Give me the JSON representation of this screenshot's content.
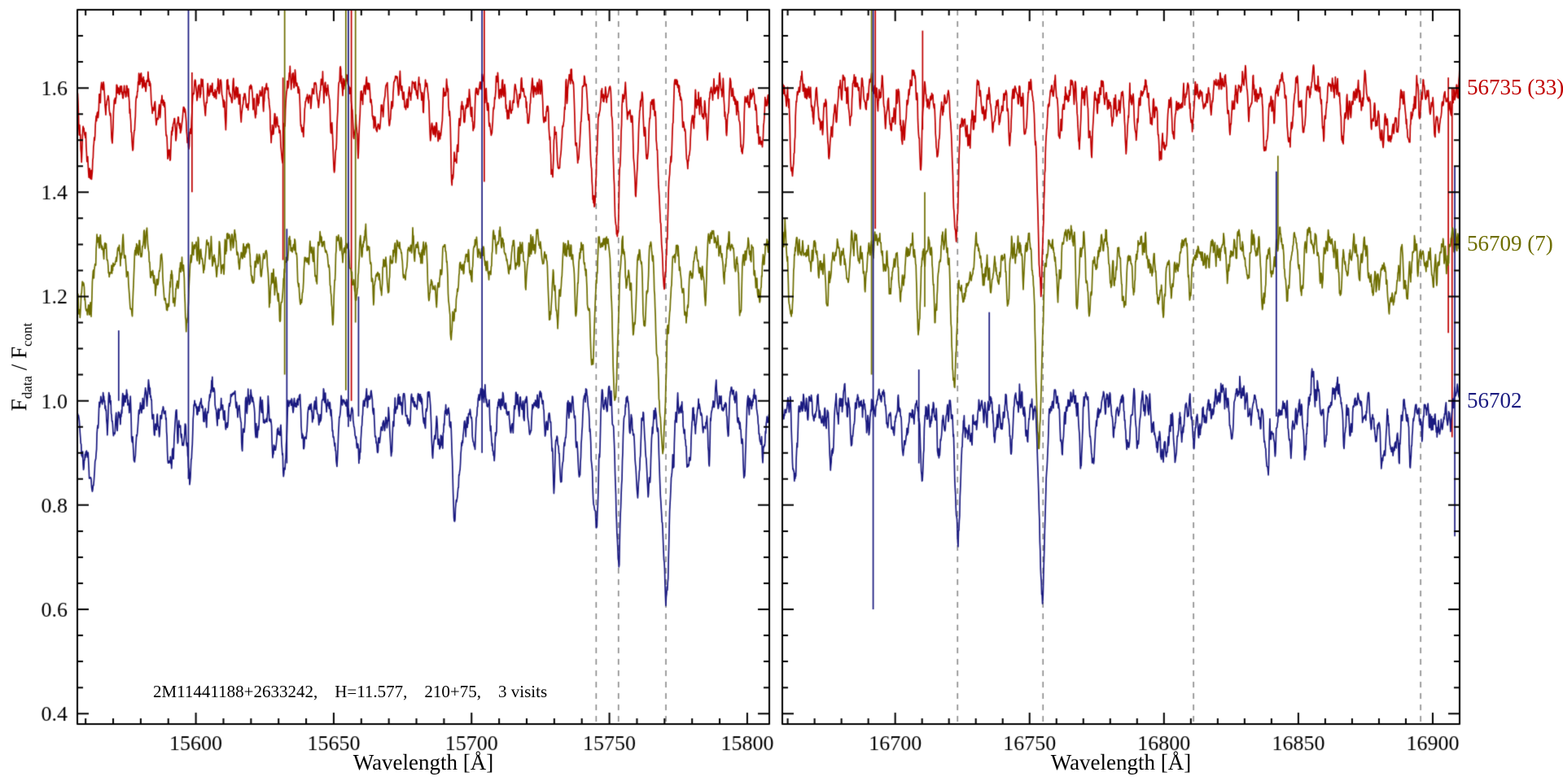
{
  "figure": {
    "background": "#ffffff",
    "annotation": "2M11441188+2633242,    H=11.577,    210+75,    3 visits",
    "ylabel": {
      "f1": "F",
      "sub1": "data",
      "mid": " / F",
      "sub2": "cont"
    }
  },
  "chart_data": {
    "type": "line",
    "title": "",
    "description": "Continuum-normalized near-infrared spectra of 2M11441188+2633242 at three epochs (MJD 56702, 56709, 56735), vertically offset; dashed vertical lines mark strong absorption features",
    "ylabel": "F_data / F_cont",
    "ylim": [
      0.38,
      1.75
    ],
    "yticks": [
      0.4,
      0.6,
      0.8,
      1.0,
      1.2,
      1.4,
      1.6
    ],
    "ytick_labels": [
      "0.4",
      "0.6",
      "0.8",
      "1.0",
      "1.2",
      "1.4",
      "1.6"
    ],
    "yminor": 0.05,
    "grid": false,
    "legend_position": "right-outside",
    "axis_color": "#000000",
    "dash_color": "#8a8a8a",
    "noise_fine": 0.02,
    "noise_broad": 0.05,
    "weak_line_count": 90,
    "series": [
      {
        "name": "56702",
        "label": "56702",
        "color": "#1a1a80",
        "offset": 1.0,
        "rv_shift": 0.0
      },
      {
        "name": "56709",
        "label": "56709 (7)",
        "color": "#6e6e00",
        "offset": 1.3,
        "rv_shift": -1.3
      },
      {
        "name": "56735",
        "label": "56735 (33)",
        "color": "#c00000",
        "offset": 1.6,
        "rv_shift": -0.6
      }
    ],
    "panels": [
      {
        "xlabel": "Wavelength [Å]",
        "xlim": [
          15557,
          15808
        ],
        "xticks": [
          15600,
          15650,
          15700,
          15750,
          15800
        ],
        "xtick_labels": [
          "15600",
          "15650",
          "15700",
          "15750",
          "15800"
        ],
        "xminor": 10,
        "seed": 11,
        "dashed_lines": [
          15745.2,
          15753.3,
          15770.5
        ],
        "lines": [
          [
            15563,
            0.1,
            0.8
          ],
          [
            15570,
            0.06,
            0.6
          ],
          [
            15578,
            0.09,
            0.7
          ],
          [
            15585,
            0.05,
            0.5
          ],
          [
            15591,
            0.12,
            0.9
          ],
          [
            15598,
            0.1,
            0.7
          ],
          [
            15604,
            0.05,
            0.5
          ],
          [
            15611,
            0.06,
            0.6
          ],
          [
            15617,
            0.05,
            0.5
          ],
          [
            15622,
            0.07,
            0.6
          ],
          [
            15628,
            0.06,
            0.5
          ],
          [
            15632,
            0.12,
            0.8
          ],
          [
            15639,
            0.06,
            0.6
          ],
          [
            15645,
            0.05,
            0.5
          ],
          [
            15651,
            0.07,
            0.6
          ],
          [
            15658,
            0.08,
            0.7
          ],
          [
            15665,
            0.06,
            0.6
          ],
          [
            15671,
            0.07,
            0.6
          ],
          [
            15677,
            0.05,
            0.5
          ],
          [
            15683,
            0.06,
            0.5
          ],
          [
            15689,
            0.09,
            0.9
          ],
          [
            15695,
            0.12,
            1.2
          ],
          [
            15701,
            0.06,
            0.6
          ],
          [
            15708,
            0.07,
            0.6
          ],
          [
            15715,
            0.05,
            0.5
          ],
          [
            15721,
            0.06,
            0.5
          ],
          [
            15727,
            0.04,
            0.5
          ],
          [
            15733,
            0.05,
            0.5
          ],
          [
            15739,
            0.07,
            0.6
          ],
          [
            15745.2,
            0.22,
            0.9
          ],
          [
            15753.3,
            0.3,
            1.0
          ],
          [
            15760,
            0.08,
            0.7
          ],
          [
            15770.5,
            0.34,
            1.4
          ],
          [
            15779,
            0.07,
            0.6
          ],
          [
            15786,
            0.06,
            0.6
          ],
          [
            15793,
            0.07,
            0.6
          ],
          [
            15799,
            0.05,
            0.5
          ]
        ],
        "artifacts": [
          [
            15572.0,
            1.0,
            1.135,
            0
          ],
          [
            15597.3,
            0.85,
            1.749,
            0
          ],
          [
            15598.6,
            1.4,
            1.63,
            2
          ],
          [
            15631.6,
            1.27,
            1.62,
            2
          ],
          [
            15632.2,
            1.05,
            1.749,
            1
          ],
          [
            15633.0,
            0.88,
            1.33,
            0
          ],
          [
            15654.4,
            1.02,
            1.749,
            1
          ],
          [
            15655.3,
            0.95,
            1.749,
            0
          ],
          [
            15656.4,
            1.0,
            1.749,
            2
          ],
          [
            15657.9,
            1.15,
            1.749,
            1
          ],
          [
            15659.0,
            0.97,
            1.2,
            0
          ],
          [
            15703.8,
            0.9,
            1.749,
            0
          ],
          [
            15704.6,
            1.42,
            1.749,
            2
          ]
        ]
      },
      {
        "xlabel": "Wavelength [Å]",
        "xlim": [
          16658,
          16910
        ],
        "xticks": [
          16700,
          16750,
          16800,
          16850,
          16900
        ],
        "xtick_labels": [
          "16700",
          "16750",
          "16800",
          "16850",
          "16900"
        ],
        "xminor": 10,
        "seed": 29,
        "dashed_lines": [
          16723.2,
          16755.0,
          16811.0,
          16895.5
        ],
        "lines": [
          [
            16663,
            0.06,
            0.6
          ],
          [
            16670,
            0.05,
            0.5
          ],
          [
            16677,
            0.07,
            0.6
          ],
          [
            16684,
            0.05,
            0.5
          ],
          [
            16690,
            0.06,
            0.6
          ],
          [
            16697,
            0.05,
            0.5
          ],
          [
            16703,
            0.07,
            0.6
          ],
          [
            16710,
            0.06,
            0.6
          ],
          [
            16716,
            0.08,
            0.7
          ],
          [
            16723.2,
            0.27,
            1.0
          ],
          [
            16730,
            0.06,
            0.6
          ],
          [
            16737,
            0.05,
            0.5
          ],
          [
            16743,
            0.06,
            0.5
          ],
          [
            16749,
            0.07,
            0.6
          ],
          [
            16755.0,
            0.3,
            1.1
          ],
          [
            16762,
            0.06,
            0.6
          ],
          [
            16769,
            0.05,
            0.5
          ],
          [
            16776,
            0.04,
            0.5
          ],
          [
            16783,
            0.05,
            0.5
          ],
          [
            16790,
            0.04,
            0.5
          ],
          [
            16797,
            0.05,
            0.5
          ],
          [
            16804,
            0.04,
            0.5
          ],
          [
            16811,
            0.05,
            0.5
          ],
          [
            16818,
            0.04,
            0.5
          ],
          [
            16825,
            0.05,
            0.5
          ],
          [
            16832,
            0.04,
            0.5
          ],
          [
            16839,
            0.05,
            0.5
          ],
          [
            16847,
            0.04,
            0.5
          ],
          [
            16853,
            0.05,
            0.5
          ],
          [
            16860,
            0.04,
            0.5
          ],
          [
            16867,
            0.05,
            0.5
          ],
          [
            16874,
            0.04,
            0.5
          ],
          [
            16881,
            0.05,
            0.5
          ],
          [
            16888,
            0.04,
            0.5
          ],
          [
            16896,
            0.05,
            0.5
          ],
          [
            16903,
            0.06,
            0.6
          ]
        ],
        "artifacts": [
          [
            16691.2,
            1.05,
            1.749,
            1
          ],
          [
            16691.8,
            0.6,
            1.749,
            0
          ],
          [
            16692.6,
            1.33,
            1.749,
            2
          ],
          [
            16708.8,
            0.88,
            1.06,
            0
          ],
          [
            16710.2,
            1.52,
            1.71,
            2
          ],
          [
            16711.0,
            1.18,
            1.4,
            1
          ],
          [
            16735.0,
            1.0,
            1.17,
            0
          ],
          [
            16841.8,
            0.97,
            1.44,
            0
          ],
          [
            16842.4,
            1.29,
            1.47,
            1
          ],
          [
            16905.8,
            1.13,
            1.62,
            2
          ],
          [
            16907.2,
            0.93,
            1.6,
            2
          ],
          [
            16908.2,
            0.74,
            1.45,
            0
          ]
        ]
      }
    ]
  }
}
